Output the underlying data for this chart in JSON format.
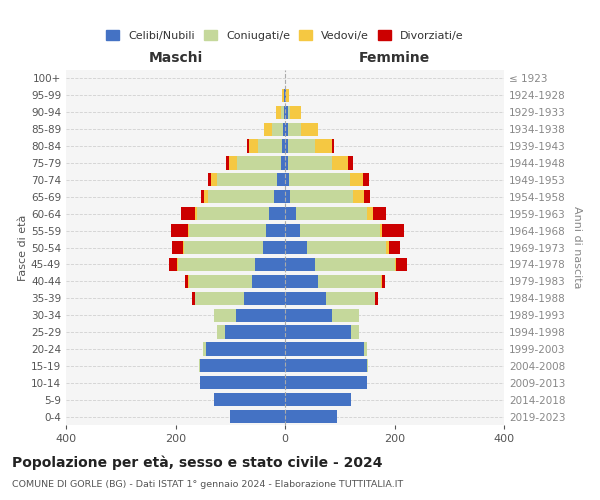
{
  "age_groups": [
    "0-4",
    "5-9",
    "10-14",
    "15-19",
    "20-24",
    "25-29",
    "30-34",
    "35-39",
    "40-44",
    "45-49",
    "50-54",
    "55-59",
    "60-64",
    "65-69",
    "70-74",
    "75-79",
    "80-84",
    "85-89",
    "90-94",
    "95-99",
    "100+"
  ],
  "birth_years": [
    "2019-2023",
    "2014-2018",
    "2009-2013",
    "2004-2008",
    "1999-2003",
    "1994-1998",
    "1989-1993",
    "1984-1988",
    "1979-1983",
    "1974-1978",
    "1969-1973",
    "1964-1968",
    "1959-1963",
    "1954-1958",
    "1949-1953",
    "1944-1948",
    "1939-1943",
    "1934-1938",
    "1929-1933",
    "1924-1928",
    "≤ 1923"
  ],
  "males": {
    "celibi": [
      100,
      130,
      155,
      155,
      145,
      110,
      90,
      75,
      60,
      55,
      40,
      35,
      30,
      20,
      15,
      8,
      5,
      3,
      2,
      2,
      0
    ],
    "coniugati": [
      0,
      0,
      0,
      2,
      5,
      15,
      40,
      90,
      115,
      140,
      145,
      140,
      130,
      120,
      110,
      80,
      45,
      20,
      5,
      0,
      0
    ],
    "vedovi": [
      0,
      0,
      0,
      0,
      0,
      0,
      0,
      0,
      2,
      2,
      2,
      3,
      5,
      8,
      10,
      15,
      15,
      15,
      10,
      3,
      0
    ],
    "divorziati": [
      0,
      0,
      0,
      0,
      0,
      0,
      0,
      5,
      5,
      15,
      20,
      30,
      25,
      5,
      5,
      5,
      5,
      0,
      0,
      0,
      0
    ]
  },
  "females": {
    "nubili": [
      95,
      120,
      150,
      150,
      145,
      120,
      85,
      75,
      60,
      55,
      40,
      28,
      20,
      10,
      8,
      5,
      5,
      5,
      5,
      2,
      0
    ],
    "coniugate": [
      0,
      0,
      0,
      2,
      5,
      15,
      50,
      90,
      115,
      145,
      145,
      145,
      130,
      115,
      110,
      80,
      50,
      25,
      5,
      0,
      0
    ],
    "vedove": [
      0,
      0,
      0,
      0,
      0,
      0,
      0,
      0,
      2,
      3,
      5,
      5,
      10,
      20,
      25,
      30,
      30,
      30,
      20,
      5,
      0
    ],
    "divorziate": [
      0,
      0,
      0,
      0,
      0,
      0,
      0,
      5,
      5,
      20,
      20,
      40,
      25,
      10,
      10,
      10,
      5,
      0,
      0,
      0,
      0
    ]
  },
  "colors": {
    "celibi": "#4472c4",
    "coniugati": "#c5d89b",
    "vedovi": "#f5c842",
    "divorziati": "#cc0000"
  },
  "xlim": 400,
  "title": "Popolazione per età, sesso e stato civile - 2024",
  "subtitle": "COMUNE DI GORLE (BG) - Dati ISTAT 1° gennaio 2024 - Elaborazione TUTTITALIA.IT",
  "xlabel_left": "Maschi",
  "xlabel_right": "Femmine",
  "ylabel_left": "Fasce di età",
  "ylabel_right": "Anni di nascita",
  "legend_labels": [
    "Celibi/Nubili",
    "Coniugati/e",
    "Vedovi/e",
    "Divorziati/e"
  ],
  "background_color": "#ffffff",
  "plot_bg_color": "#f5f5f5",
  "grid_color": "#cccccc"
}
